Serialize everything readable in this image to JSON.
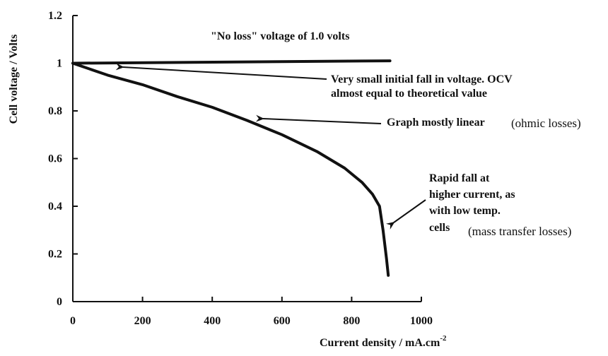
{
  "chart_data": {
    "type": "line",
    "title": "",
    "xlabel": "Current density / mA.cm",
    "xlabel_superscript": "-2",
    "ylabel": "Cell voltage / Volts",
    "xlim": [
      0,
      1000
    ],
    "ylim": [
      0,
      1.2
    ],
    "x_ticks": [
      "0",
      "200",
      "400",
      "600",
      "800",
      "1000"
    ],
    "y_ticks": [
      "0",
      "0.2",
      "0.4",
      "0.6",
      "0.8",
      "1",
      "1.2"
    ],
    "grid": false,
    "series": [
      {
        "name": "",
        "x": [
          0,
          910
        ],
        "y": [
          1.0,
          1.01
        ]
      },
      {
        "name": "",
        "x": [
          0,
          100,
          200,
          300,
          400,
          500,
          600,
          700,
          780,
          830,
          860,
          880,
          890,
          900,
          905
        ],
        "y": [
          1.0,
          0.95,
          0.91,
          0.86,
          0.815,
          0.76,
          0.7,
          0.63,
          0.56,
          0.5,
          0.45,
          0.4,
          0.3,
          0.18,
          0.11
        ]
      }
    ],
    "annotations": {
      "no_loss": "\"No loss\" voltage of 1.0 volts",
      "ocv_line1": "Very small initial fall in voltage. OCV",
      "ocv_line2": "almost equal to theoretical value",
      "linear": "Graph mostly linear",
      "ohmic": "(ohmic losses)",
      "rapid_line1": "Rapid fall at",
      "rapid_line2": "higher current, as",
      "rapid_line3": "with low temp.",
      "rapid_line4": "cells",
      "mass": "(mass transfer losses)"
    }
  }
}
